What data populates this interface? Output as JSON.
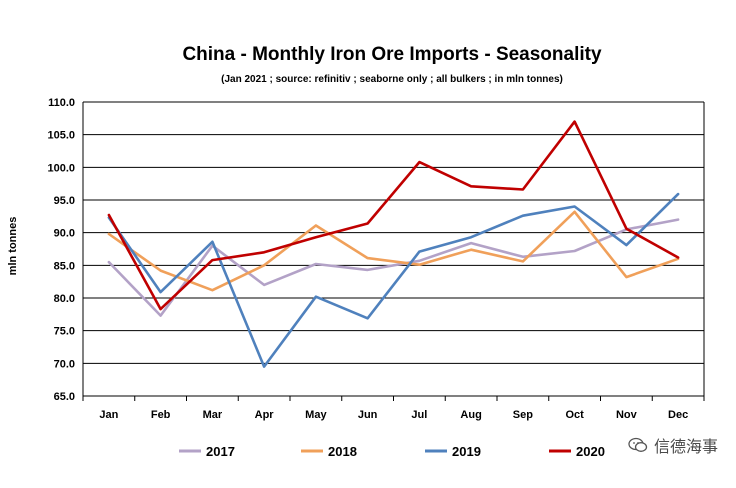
{
  "chart_data": {
    "type": "line",
    "title": "China - Monthly Iron Ore Imports - Seasonality",
    "subtitle": "(Jan 2021 ; source: refinitiv ; seaborne only ; all bulkers ; in mln tonnes)",
    "xlabel": "",
    "ylabel": "mln tonnes",
    "ylim": [
      65.0,
      110.0
    ],
    "yticks": [
      "65.0",
      "70.0",
      "75.0",
      "80.0",
      "85.0",
      "90.0",
      "95.0",
      "100.0",
      "105.0",
      "110.0"
    ],
    "grid": true,
    "legend_position": "bottom",
    "categories": [
      "Jan",
      "Feb",
      "Mar",
      "Apr",
      "May",
      "Jun",
      "Jul",
      "Aug",
      "Sep",
      "Oct",
      "Nov",
      "Dec"
    ],
    "series": [
      {
        "name": "2017",
        "color": "#b3a2c7",
        "values": [
          85.5,
          77.3,
          88.0,
          82.0,
          85.2,
          84.3,
          85.7,
          88.4,
          86.3,
          87.2,
          90.5,
          92.0
        ]
      },
      {
        "name": "2018",
        "color": "#f0a05a",
        "values": [
          89.8,
          84.2,
          81.2,
          85.0,
          91.1,
          86.1,
          85.1,
          87.4,
          85.6,
          93.2,
          83.2,
          86.0
        ]
      },
      {
        "name": "2019",
        "color": "#4f81bd",
        "values": [
          92.3,
          80.9,
          88.6,
          69.5,
          80.2,
          76.9,
          87.1,
          89.3,
          92.6,
          94.0,
          88.1,
          95.9
        ]
      },
      {
        "name": "2020",
        "color": "#c00000",
        "values": [
          92.7,
          78.3,
          85.8,
          87.0,
          89.3,
          91.4,
          100.8,
          97.1,
          96.6,
          107.0,
          90.6,
          86.2
        ]
      }
    ]
  },
  "watermark": {
    "text": "信德海事",
    "icon": "wechat-icon"
  }
}
